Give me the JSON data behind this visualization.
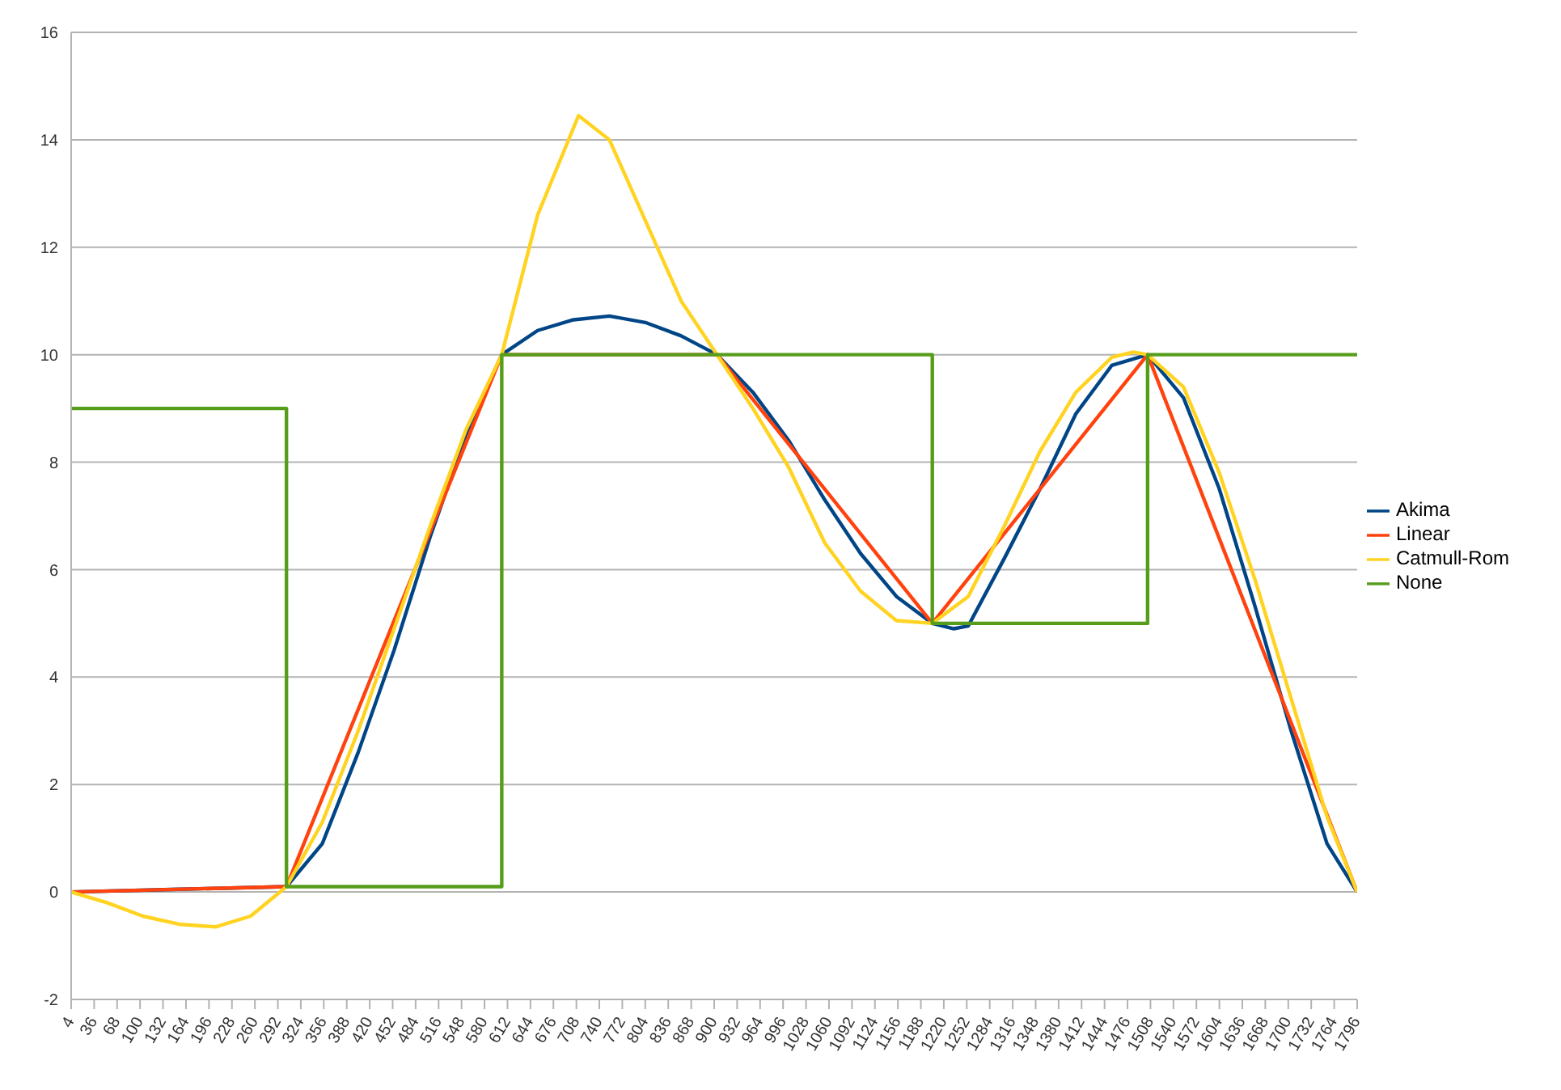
{
  "chart_data": {
    "type": "line",
    "xlim": [
      4,
      1796
    ],
    "xticks": [
      4,
      36,
      68,
      100,
      132,
      164,
      196,
      228,
      260,
      292,
      324,
      356,
      388,
      420,
      452,
      484,
      516,
      548,
      580,
      612,
      644,
      676,
      708,
      740,
      772,
      804,
      836,
      868,
      900,
      932,
      964,
      996,
      1028,
      1060,
      1092,
      1124,
      1156,
      1188,
      1220,
      1252,
      1284,
      1316,
      1348,
      1380,
      1412,
      1444,
      1476,
      1508,
      1540,
      1572,
      1604,
      1636,
      1668,
      1700,
      1732,
      1764,
      1796
    ],
    "ylim": [
      -2,
      16
    ],
    "yticks": [
      -2,
      0,
      2,
      4,
      6,
      8,
      10,
      12,
      14,
      16
    ],
    "grid": "y",
    "legend": "right",
    "marker": "none",
    "line_style": "solid",
    "series": [
      {
        "name": "Akima",
        "color": "#004586",
        "x": [
          4,
          154,
          304,
          354,
          404,
          454,
          504,
          554,
          604,
          654,
          704,
          754,
          804,
          854,
          904,
          954,
          1004,
          1054,
          1104,
          1154,
          1204,
          1234,
          1254,
          1304,
          1354,
          1404,
          1454,
          1504,
          1554,
          1604,
          1654,
          1704,
          1754,
          1796
        ],
        "values": [
          0,
          0.05,
          0.1,
          0.9,
          2.6,
          4.5,
          6.6,
          8.5,
          10,
          10.45,
          10.65,
          10.72,
          10.6,
          10.35,
          10,
          9.3,
          8.4,
          7.3,
          6.3,
          5.5,
          5,
          4.9,
          4.95,
          6.2,
          7.5,
          8.9,
          9.8,
          10,
          9.2,
          7.5,
          5.3,
          3,
          0.9,
          0
        ]
      },
      {
        "name": "Linear",
        "color": "#ff420e",
        "x": [
          4,
          304,
          604,
          904,
          1204,
          1504,
          1796
        ],
        "values": [
          0,
          0.1,
          10,
          10,
          5,
          10,
          0
        ]
      },
      {
        "name": "Catmull-Rom",
        "color": "#ffd320",
        "x": [
          4,
          54,
          104,
          154,
          205,
          254,
          304,
          354,
          404,
          454,
          504,
          554,
          604,
          654,
          711,
          754,
          804,
          854,
          904,
          954,
          1004,
          1054,
          1104,
          1154,
          1204,
          1254,
          1304,
          1354,
          1404,
          1454,
          1484,
          1504,
          1554,
          1604,
          1654,
          1704,
          1754,
          1796
        ],
        "values": [
          0,
          -0.2,
          -0.45,
          -0.6,
          -0.65,
          -0.45,
          0.1,
          1.3,
          3,
          4.9,
          6.8,
          8.6,
          10,
          12.6,
          14.45,
          14,
          12.5,
          11,
          10,
          9,
          7.9,
          6.5,
          5.6,
          5.05,
          5,
          5.5,
          6.8,
          8.2,
          9.3,
          9.95,
          10.05,
          10,
          9.4,
          7.8,
          5.8,
          3.6,
          1.4,
          0
        ]
      },
      {
        "name": "None",
        "type": "step",
        "color": "#579d1c",
        "x": [
          4,
          304,
          604,
          904,
          1204,
          1504,
          1796
        ],
        "values": [
          9,
          0.1,
          10,
          10,
          5,
          10,
          10
        ]
      }
    ]
  }
}
